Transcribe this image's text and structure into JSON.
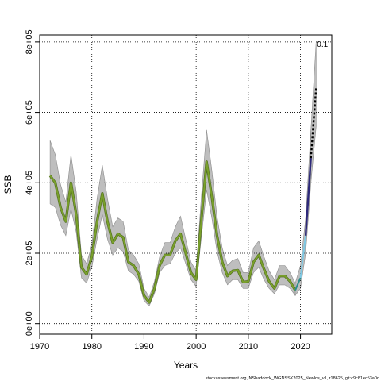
{
  "chart_data": {
    "type": "line",
    "xlabel": "Years",
    "ylabel": "SSB",
    "xlim": [
      1970,
      2026
    ],
    "ylim": [
      -30000,
      820000
    ],
    "x_ticks": [
      1970,
      1980,
      1990,
      2000,
      2010,
      2020
    ],
    "y_ticks": [
      0,
      200000,
      400000,
      600000,
      800000
    ],
    "y_tick_labels": [
      "0e+00",
      "2e+05",
      "4e+05",
      "6e+05",
      "8e+05"
    ],
    "grid": true,
    "colors": {
      "band": "#bebebe",
      "band_edge": "#8c8c8c",
      "historical": "#7aa02c",
      "recent_1": "#2a8c8c",
      "recent_2": "#7ec8e3",
      "forecast": "#2e2a7a",
      "projection": "#000000"
    },
    "annotation": "0.1",
    "footer": "stockassessment.org, NShaddock_WGNSSK2025_Newlds_v1, r18625, git:c9c81ec53a0d",
    "series": [
      {
        "segment": "historical",
        "x": [
          1972,
          1973,
          1974,
          1975,
          1976,
          1977,
          1978,
          1979,
          1980,
          1981,
          1982,
          1983,
          1984,
          1985,
          1986,
          1987,
          1988,
          1989,
          1990,
          1991,
          1992,
          1993,
          1994,
          1995,
          1996,
          1997,
          1998,
          1999,
          2000,
          2001,
          2002,
          2003,
          2004,
          2005,
          2006,
          2007,
          2008,
          2009,
          2010,
          2011,
          2012,
          2013,
          2014,
          2015,
          2016,
          2017,
          2018,
          2019
        ],
        "y": [
          420000,
          400000,
          330000,
          290000,
          400000,
          310000,
          160000,
          140000,
          190000,
          290000,
          370000,
          290000,
          230000,
          255000,
          245000,
          175000,
          165000,
          140000,
          80000,
          60000,
          100000,
          165000,
          195000,
          195000,
          235000,
          255000,
          200000,
          145000,
          125000,
          295000,
          460000,
          360000,
          250000,
          175000,
          135000,
          150000,
          152000,
          118000,
          120000,
          175000,
          195000,
          155000,
          120000,
          100000,
          135000,
          135000,
          120000,
          95000
        ],
        "lower": [
          340000,
          330000,
          280000,
          250000,
          325000,
          260000,
          130000,
          115000,
          160000,
          240000,
          310000,
          240000,
          195000,
          215000,
          205000,
          150000,
          140000,
          120000,
          65000,
          50000,
          85000,
          145000,
          165000,
          170000,
          200000,
          215000,
          170000,
          125000,
          105000,
          245000,
          380000,
          300000,
          205000,
          145000,
          110000,
          125000,
          125000,
          100000,
          100000,
          145000,
          160000,
          125000,
          100000,
          85000,
          110000,
          110000,
          100000,
          80000
        ],
        "upper": [
          520000,
          480000,
          395000,
          345000,
          480000,
          375000,
          195000,
          170000,
          225000,
          355000,
          450000,
          355000,
          275000,
          300000,
          290000,
          210000,
          195000,
          170000,
          100000,
          75000,
          120000,
          190000,
          230000,
          230000,
          275000,
          305000,
          240000,
          175000,
          150000,
          360000,
          550000,
          435000,
          305000,
          215000,
          165000,
          180000,
          185000,
          145000,
          145000,
          215000,
          235000,
          190000,
          150000,
          125000,
          165000,
          165000,
          145000,
          115000
        ]
      },
      {
        "segment": "recent",
        "x": [
          2019,
          2020,
          2021
        ],
        "y": [
          95000,
          130000,
          250000
        ],
        "lower": [
          80000,
          100000,
          200000
        ],
        "upper": [
          115000,
          165000,
          300000
        ]
      },
      {
        "segment": "forecast",
        "x": [
          2021,
          2022
        ],
        "y": [
          250000,
          470000
        ],
        "lower": [
          200000,
          400000
        ],
        "upper": [
          300000,
          550000
        ]
      },
      {
        "segment": "projection",
        "x": [
          2022,
          2023
        ],
        "y": [
          470000,
          670000
        ],
        "lower": [
          400000,
          560000
        ],
        "upper": [
          550000,
          800000
        ]
      }
    ]
  }
}
